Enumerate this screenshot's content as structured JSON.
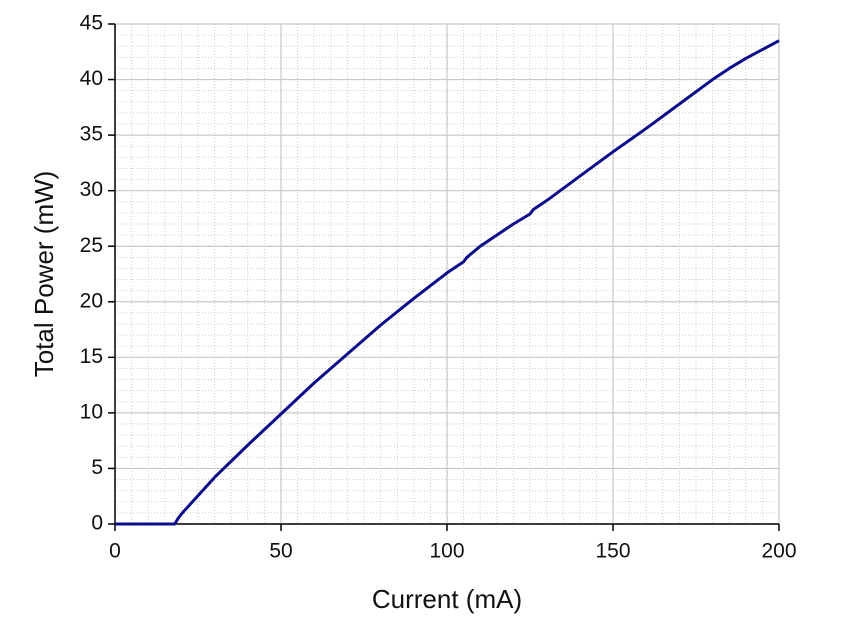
{
  "chart_data": {
    "type": "line",
    "x_label": "Current (mA)",
    "y_label": "Total Power (mW)",
    "x": [
      0,
      10,
      18,
      19,
      20,
      30,
      40,
      50,
      60,
      70,
      80,
      90,
      100,
      105,
      106,
      110,
      120,
      125,
      126,
      130,
      140,
      150,
      160,
      170,
      180,
      185,
      190,
      200
    ],
    "series": [
      {
        "color": "#0d0d8c",
        "values": [
          0,
          0,
          0,
          0.5,
          0.9,
          4.2,
          7.1,
          9.9,
          12.7,
          15.3,
          17.9,
          20.3,
          22.6,
          23.6,
          24.0,
          25.0,
          27.0,
          27.9,
          28.3,
          29.1,
          31.3,
          33.5,
          35.6,
          37.8,
          40.0,
          41.0,
          41.9,
          43.5
        ]
      }
    ],
    "xlim": [
      0,
      200
    ],
    "xticks": [
      0,
      50,
      100,
      150,
      200
    ],
    "ylim": [
      0,
      45
    ],
    "yticks": [
      0,
      5,
      10,
      15,
      20,
      25,
      30,
      35,
      40,
      45
    ],
    "grid": true,
    "minor_grid": true
  }
}
